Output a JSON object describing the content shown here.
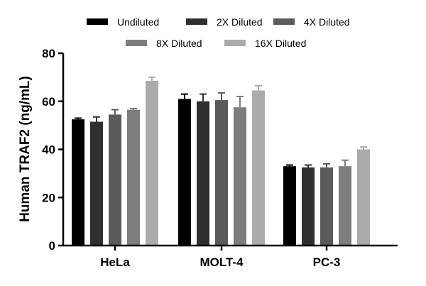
{
  "chart_data": {
    "type": "bar",
    "title": "",
    "xlabel": "",
    "ylabel": "Human TRAF2 (ng/mL)",
    "ylim": [
      0,
      80
    ],
    "yticks": [
      0,
      20,
      40,
      60,
      80
    ],
    "grid": false,
    "legend_position": "top",
    "categories": [
      "HeLa",
      "MOLT-4",
      "PC-3"
    ],
    "series": [
      {
        "name": "Undiluted",
        "color": "#000000",
        "values": [
          52.5,
          61.0,
          33.0
        ],
        "errors": [
          0.5,
          2.0,
          0.5
        ]
      },
      {
        "name": "2X Diluted",
        "color": "#2f2f2f",
        "values": [
          51.5,
          60.0,
          32.5
        ],
        "errors": [
          2.0,
          3.0,
          1.0
        ]
      },
      {
        "name": "4X Diluted",
        "color": "#5a5a5a",
        "values": [
          54.5,
          60.5,
          32.5
        ],
        "errors": [
          2.0,
          3.0,
          1.5
        ]
      },
      {
        "name": "8X Diluted",
        "color": "#7d7d7d",
        "values": [
          56.5,
          57.5,
          33.0
        ],
        "errors": [
          0.5,
          4.5,
          2.5
        ]
      },
      {
        "name": "16X Diluted",
        "color": "#ababab",
        "values": [
          68.5,
          64.5,
          40.0
        ],
        "errors": [
          1.5,
          2.0,
          1.0
        ]
      }
    ]
  }
}
